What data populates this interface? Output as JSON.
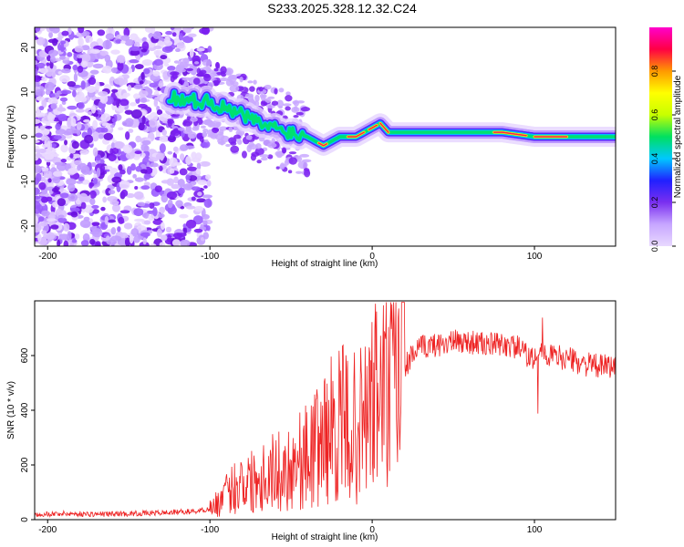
{
  "figure": {
    "title": "S233.2025.328.12.32.C24"
  },
  "chart_data": [
    {
      "type": "heatmap",
      "title": "S233.2025.328.12.32.C24",
      "xlabel": "Height of straight line (km)",
      "ylabel": "Frequency (Hz)",
      "xlim": [
        -208,
        150
      ],
      "ylim": [
        -24.5,
        24.5
      ],
      "xticks": [
        -200,
        -100,
        0,
        100
      ],
      "xtick_labels": [
        "-200",
        "-100",
        "0",
        "100"
      ],
      "yticks": [
        -20,
        -10,
        0,
        10,
        20
      ],
      "ytick_labels": [
        "-20",
        "-10",
        "0",
        "10",
        "20"
      ],
      "ridge": {
        "description_points_x": [
          -125,
          -110,
          -100,
          -90,
          -80,
          -70,
          -60,
          -50,
          -40,
          -35,
          -30,
          -25,
          -20,
          -10,
          0,
          5,
          10,
          20,
          40,
          60,
          80,
          100,
          120,
          150
        ],
        "description_points_y": [
          9,
          8,
          8,
          6,
          5,
          3,
          2,
          1,
          0,
          -1,
          -2,
          -1,
          0,
          0,
          2,
          3,
          1,
          1,
          1,
          1,
          1,
          0,
          0,
          0
        ]
      },
      "colorbar": {
        "label": "Normalized spectral amplitude",
        "range": [
          0.0,
          1.0
        ],
        "ticks": [
          0.0,
          0.2,
          0.4,
          0.6,
          0.8
        ],
        "tick_labels": [
          "0.0",
          "0.2",
          "0.4",
          "0.6",
          "0.8"
        ],
        "colors": [
          "#e8d9ff",
          "#c7a6ff",
          "#7a2ff0",
          "#2020ff",
          "#00c8ff",
          "#00e060",
          "#c8ff00",
          "#ffff00",
          "#ff9900",
          "#ff0044",
          "#ff00cc"
        ]
      }
    },
    {
      "type": "line",
      "xlabel": "Height of straight line (km)",
      "ylabel": "SNR (10 * v/v)",
      "xlim": [
        -208,
        150
      ],
      "ylim": [
        0,
        800
      ],
      "xticks": [
        -200,
        -100,
        0,
        100
      ],
      "xtick_labels": [
        "-200",
        "-100",
        "0",
        "100"
      ],
      "yticks": [
        0,
        200,
        400,
        600
      ],
      "ytick_labels": [
        "0",
        "200",
        "400",
        "600"
      ],
      "color": "#ee2222",
      "series": [
        {
          "name": "SNR",
          "x": [
            -208,
            -190,
            -170,
            -150,
            -130,
            -120,
            -110,
            -100,
            -95,
            -90,
            -85,
            -80,
            -75,
            -70,
            -65,
            -60,
            -55,
            -50,
            -45,
            -40,
            -35,
            -30,
            -25,
            -20,
            -15,
            -10,
            -5,
            0,
            5,
            10,
            15,
            20,
            25,
            30,
            40,
            50,
            60,
            70,
            80,
            90,
            95,
            100,
            105,
            110,
            120,
            130,
            140,
            150
          ],
          "y": [
            20,
            22,
            20,
            22,
            25,
            28,
            30,
            40,
            60,
            90,
            120,
            150,
            140,
            160,
            170,
            180,
            170,
            200,
            220,
            230,
            260,
            300,
            330,
            350,
            340,
            330,
            360,
            420,
            480,
            450,
            500,
            560,
            600,
            630,
            640,
            650,
            650,
            640,
            640,
            630,
            600,
            580,
            610,
            600,
            590,
            570,
            560,
            560
          ]
        }
      ]
    }
  ]
}
